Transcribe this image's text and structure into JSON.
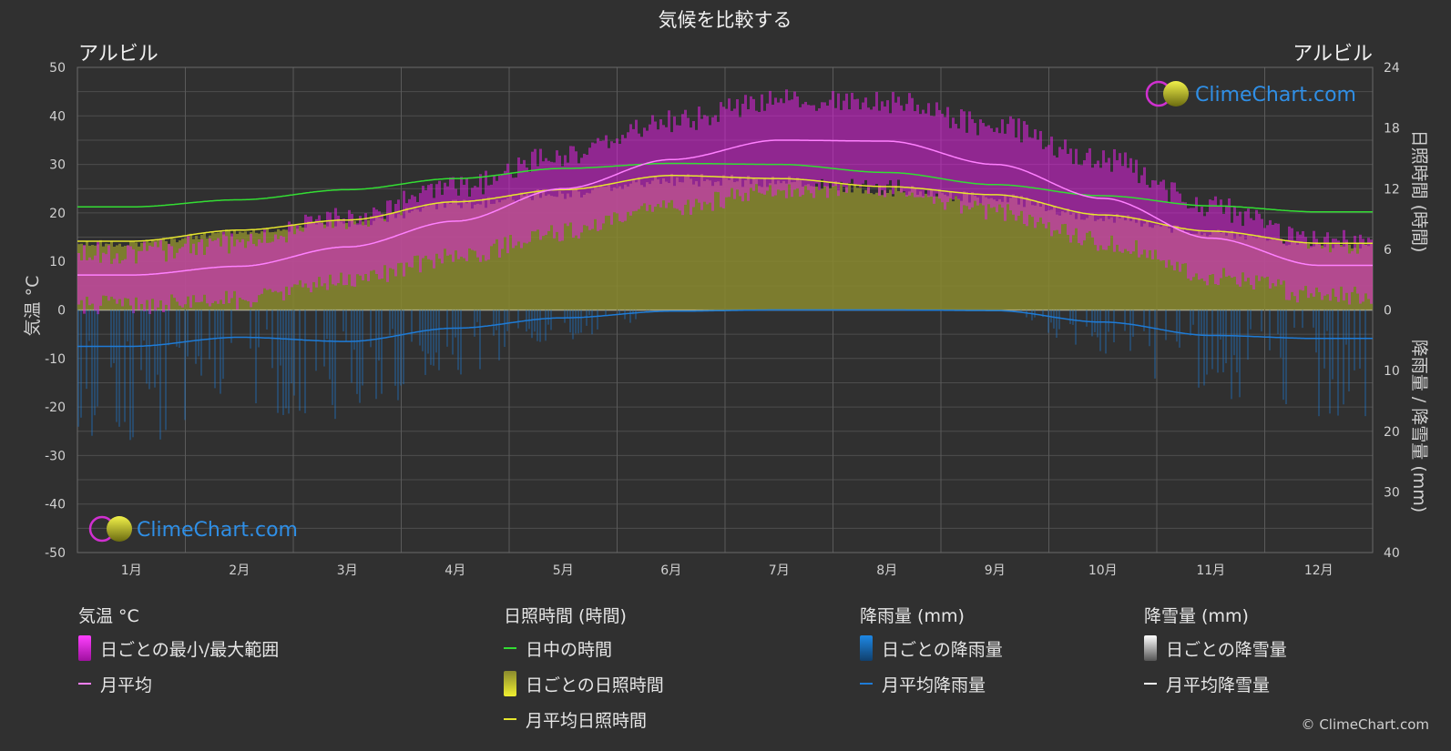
{
  "title": "気候を比較する",
  "location_left": "アルビル",
  "location_right": "アルビル",
  "left_axis_label": "気温 °C",
  "right_axis_top_label": "日照時間 (時間)",
  "right_axis_bottom_label": "降雨量 / 降雪量 (mm)",
  "watermark": "ClimeChart.com",
  "copyright": "© ClimeChart.com",
  "colors": {
    "background": "#303030",
    "temp_range": "#e020e0",
    "temp_avg": "#ff80ff",
    "daylight": "#33dd33",
    "sunshine_fill": "#8a8a2e",
    "sunshine_avg": "#e6e62e",
    "rain": "#1e7bd6",
    "snow": "#ffffff",
    "watermark": "#2f8fe6"
  },
  "legend": {
    "temp": {
      "header": "気温 °C",
      "range": "日ごとの最小/最大範囲",
      "avg": "月平均"
    },
    "sun": {
      "header": "日照時間 (時間)",
      "daylight": "日中の時間",
      "daily": "日ごとの日照時間",
      "avg": "月平均日照時間"
    },
    "rain": {
      "header": "降雨量 (mm)",
      "daily": "日ごとの降雨量",
      "avg": "月平均降雨量"
    },
    "snow": {
      "header": "降雪量 (mm)",
      "daily": "日ごとの降雪量",
      "avg": "月平均降雪量"
    }
  },
  "chart_data": {
    "type": "area",
    "categories": [
      "1月",
      "2月",
      "3月",
      "4月",
      "5月",
      "6月",
      "7月",
      "8月",
      "9月",
      "10月",
      "11月",
      "12月"
    ],
    "left_axis": {
      "label": "気温 °C",
      "ylim": [
        -50,
        50
      ],
      "ticks": [
        50,
        40,
        30,
        20,
        10,
        0,
        -10,
        -20,
        -30,
        -40,
        -50
      ]
    },
    "right_axis_top": {
      "label": "日照時間 (時間)",
      "ylim": [
        0,
        24
      ],
      "ticks": [
        24,
        18,
        12,
        6,
        0
      ]
    },
    "right_axis_bottom": {
      "label": "降雨量 / 降雪量 (mm)",
      "ylim": [
        0,
        40
      ],
      "ticks": [
        0,
        10,
        20,
        30,
        40
      ]
    },
    "grid": true,
    "series": [
      {
        "name": "日ごとの最小/最大範囲",
        "axis": "left",
        "type": "range",
        "min": [
          1,
          2,
          6,
          11,
          16,
          21,
          25,
          25,
          20,
          14,
          7,
          3
        ],
        "max": [
          12,
          14,
          19,
          25,
          32,
          39,
          43,
          43,
          38,
          31,
          21,
          14
        ]
      },
      {
        "name": "月平均",
        "axis": "left",
        "type": "line",
        "values": [
          7.2,
          9.0,
          13.0,
          18.3,
          25.0,
          31.0,
          35.0,
          34.8,
          30.0,
          23.0,
          14.8,
          9.2
        ]
      },
      {
        "name": "日中の時間",
        "axis": "right_top",
        "type": "line",
        "values": [
          10.2,
          10.9,
          11.9,
          13.0,
          14.0,
          14.5,
          14.4,
          13.6,
          12.4,
          11.3,
          10.3,
          9.7
        ]
      },
      {
        "name": "日ごとの日照時間",
        "axis": "right_top",
        "type": "area",
        "values": [
          6.8,
          7.9,
          8.9,
          10.7,
          11.9,
          13.3,
          13.0,
          12.2,
          11.4,
          9.4,
          7.8,
          6.6
        ]
      },
      {
        "name": "月平均日照時間",
        "axis": "right_top",
        "type": "line",
        "values": [
          6.8,
          7.9,
          8.9,
          10.7,
          11.9,
          13.3,
          13.0,
          12.2,
          11.4,
          9.4,
          7.8,
          6.6
        ]
      },
      {
        "name": "月平均降雨量",
        "axis": "right_bottom",
        "type": "line",
        "values": [
          6.0,
          4.5,
          5.2,
          3.0,
          1.3,
          0.2,
          0,
          0,
          0.1,
          2.0,
          4.2,
          4.7
        ]
      },
      {
        "name": "月平均降雪量",
        "axis": "right_bottom",
        "type": "line",
        "values": [
          0,
          0,
          0,
          0,
          0,
          0,
          0,
          0,
          0,
          0,
          0,
          0
        ]
      }
    ]
  }
}
